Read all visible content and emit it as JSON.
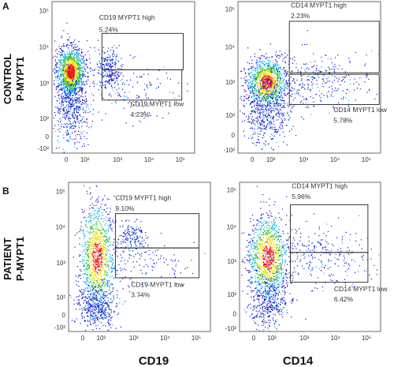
{
  "panel_letters": {
    "a": "A",
    "b": "B"
  },
  "row_labels": {
    "control": [
      "CONTROL",
      "P-MYPT1"
    ],
    "patient": [
      "PATIENT",
      "P-MYPT1"
    ]
  },
  "column_labels": {
    "left": "CD19",
    "right": "CD14"
  },
  "axis_ticks": {
    "x": [
      "0",
      "10²",
      "10³",
      "10⁴",
      "10⁵"
    ],
    "y": [
      "10⁵",
      "10⁴",
      "10³",
      "10²",
      "0",
      "-10²"
    ]
  },
  "colors": {
    "density_low": "#1010c8",
    "density_mid": "#00b0f0",
    "density_mid2": "#30c030",
    "density_high": "#f0e000",
    "density_peak": "#f01010",
    "gate": "#222222"
  },
  "chart_data": [
    {
      "type": "scatter",
      "title": "",
      "panel": "A",
      "row": "CONTROL",
      "xlabel": "CD19",
      "ylabel": "P-MYPT1",
      "xlim": [
        -100,
        100000
      ],
      "ylim": [
        -100,
        100000
      ],
      "scale": "biexponential",
      "gates": [
        {
          "name": "CD19 MYPT1 high",
          "percent": "5.24%"
        },
        {
          "name": "CD19 MYPT1 low",
          "percent": "4.23%"
        }
      ]
    },
    {
      "type": "scatter",
      "title": "",
      "panel": "A",
      "row": "CONTROL",
      "xlabel": "CD14",
      "ylabel": "P-MYPT1",
      "xlim": [
        -100,
        100000
      ],
      "ylim": [
        -100,
        100000
      ],
      "scale": "biexponential",
      "gates": [
        {
          "name": "CD14 MYPT1 high",
          "percent": "2.23%"
        },
        {
          "name": "CD14 MYPT1 low",
          "percent": "5.78%"
        }
      ]
    },
    {
      "type": "scatter",
      "title": "",
      "panel": "B",
      "row": "PATIENT",
      "xlabel": "CD19",
      "ylabel": "P-MYPT1",
      "xlim": [
        -100,
        100000
      ],
      "ylim": [
        -100,
        100000
      ],
      "scale": "biexponential",
      "gates": [
        {
          "name": "CD19 MYPT1 high",
          "percent": "9.10%"
        },
        {
          "name": "CD19 MYPT1 low",
          "percent": "3.74%"
        }
      ]
    },
    {
      "type": "scatter",
      "title": "",
      "panel": "B",
      "row": "PATIENT",
      "xlabel": "CD14",
      "ylabel": "P-MYPT1",
      "xlim": [
        -100,
        100000
      ],
      "ylim": [
        -100,
        100000
      ],
      "scale": "biexponential",
      "gates": [
        {
          "name": "CD14 MYPT1 high",
          "percent": "5.96%"
        },
        {
          "name": "CD14 MYPT1 low",
          "percent": "6.42%"
        }
      ]
    }
  ]
}
